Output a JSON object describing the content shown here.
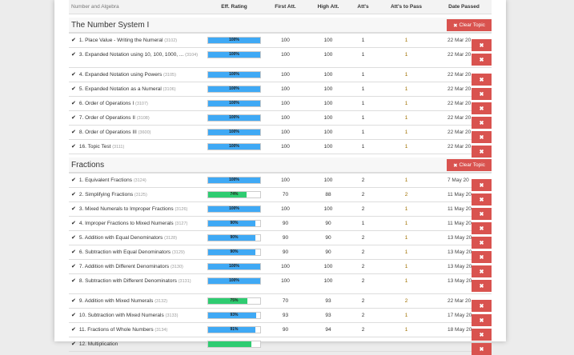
{
  "header": {
    "name": "Number and Algebra",
    "eff": "Eff. Rating",
    "first": "First Att.",
    "high": "High Att.",
    "atts": "Att's",
    "pass": "Att's to Pass",
    "date": "Date Passed"
  },
  "clear_label": "Clear Topic",
  "delete_icon": "✖",
  "colors": {
    "blue": "#3fa9f5",
    "green": "#2ecc71",
    "danger": "#d9534f"
  },
  "sections": [
    {
      "title": "The Number System I",
      "rows": [
        {
          "name": "1. Place Value - Writing the Numeral",
          "code": "(3102)",
          "eff": 100,
          "eff_label": "100%",
          "color": "blue",
          "first": "100",
          "high": "100",
          "atts": "1",
          "pass": "1",
          "date": "22 Mar 20"
        },
        {
          "name": "3. Expanded Notation using 10, 100, 1000, ...",
          "code": "(3104)",
          "eff": 100,
          "eff_label": "100%",
          "color": "blue",
          "first": "100",
          "high": "100",
          "atts": "1",
          "pass": "1",
          "date": "22 Mar 20",
          "wrap": true
        },
        {
          "name": "4. Expanded Notation using Powers",
          "code": "(3105)",
          "eff": 100,
          "eff_label": "100%",
          "color": "blue",
          "first": "100",
          "high": "100",
          "atts": "1",
          "pass": "1",
          "date": "22 Mar 20"
        },
        {
          "name": "5. Expanded Notation as a Numeral",
          "code": "(3106)",
          "eff": 100,
          "eff_label": "100%",
          "color": "blue",
          "first": "100",
          "high": "100",
          "atts": "1",
          "pass": "1",
          "date": "22 Mar 20"
        },
        {
          "name": "6. Order of Operations I",
          "code": "(3107)",
          "eff": 100,
          "eff_label": "100%",
          "color": "blue",
          "first": "100",
          "high": "100",
          "atts": "1",
          "pass": "1",
          "date": "22 Mar 20"
        },
        {
          "name": "7. Order of Operations II",
          "code": "(3108)",
          "eff": 100,
          "eff_label": "100%",
          "color": "blue",
          "first": "100",
          "high": "100",
          "atts": "1",
          "pass": "1",
          "date": "22 Mar 20"
        },
        {
          "name": "8. Order of Operations III",
          "code": "(3600)",
          "eff": 100,
          "eff_label": "100%",
          "color": "blue",
          "first": "100",
          "high": "100",
          "atts": "1",
          "pass": "1",
          "date": "22 Mar 20"
        },
        {
          "name": "16. Topic Test",
          "code": "(3111)",
          "eff": 100,
          "eff_label": "100%",
          "color": "blue",
          "first": "100",
          "high": "100",
          "atts": "1",
          "pass": "1",
          "date": "22 Mar 20"
        }
      ]
    },
    {
      "title": "Fractions",
      "rows": [
        {
          "name": "1. Equivalent Fractions",
          "code": "(3124)",
          "eff": 100,
          "eff_label": "100%",
          "color": "blue",
          "first": "100",
          "high": "100",
          "atts": "2",
          "pass": "1",
          "date": "7 May 20"
        },
        {
          "name": "2. Simplifying Fractions",
          "code": "(3125)",
          "eff": 74,
          "eff_label": "74%",
          "color": "green",
          "first": "70",
          "high": "88",
          "atts": "2",
          "pass": "2",
          "date": "11 May 20"
        },
        {
          "name": "3. Mixed Numerals to Improper Fractions",
          "code": "(3126)",
          "eff": 100,
          "eff_label": "100%",
          "color": "blue",
          "first": "100",
          "high": "100",
          "atts": "2",
          "pass": "1",
          "date": "11 May 20"
        },
        {
          "name": "4. Improper Fractions to Mixed Numerals",
          "code": "(3127)",
          "eff": 90,
          "eff_label": "90%",
          "color": "blue",
          "first": "90",
          "high": "90",
          "atts": "1",
          "pass": "1",
          "date": "11 May 20"
        },
        {
          "name": "5. Addition with Equal Denominators",
          "code": "(3128)",
          "eff": 90,
          "eff_label": "90%",
          "color": "blue",
          "first": "90",
          "high": "90",
          "atts": "2",
          "pass": "1",
          "date": "13 May 20"
        },
        {
          "name": "6. Subtraction with Equal Denominators",
          "code": "(3129)",
          "eff": 90,
          "eff_label": "90%",
          "color": "blue",
          "first": "90",
          "high": "90",
          "atts": "2",
          "pass": "1",
          "date": "13 May 20"
        },
        {
          "name": "7. Addition with Different Denominators",
          "code": "(3130)",
          "eff": 100,
          "eff_label": "100%",
          "color": "blue",
          "first": "100",
          "high": "100",
          "atts": "2",
          "pass": "1",
          "date": "13 May 20"
        },
        {
          "name": "8. Subtraction with Different Denominators",
          "code": "(3131)",
          "eff": 100,
          "eff_label": "100%",
          "color": "blue",
          "first": "100",
          "high": "100",
          "atts": "2",
          "pass": "1",
          "date": "13 May 20",
          "wrap": true
        },
        {
          "name": "9. Addition with Mixed Numerals",
          "code": "(3132)",
          "eff": 75,
          "eff_label": "75%",
          "color": "green",
          "first": "70",
          "high": "93",
          "atts": "2",
          "pass": "2",
          "date": "22 Mar 20"
        },
        {
          "name": "10. Subtraction with Mixed Numerals",
          "code": "(3133)",
          "eff": 93,
          "eff_label": "93%",
          "color": "blue",
          "first": "93",
          "high": "93",
          "atts": "2",
          "pass": "1",
          "date": "17 May 20"
        },
        {
          "name": "11. Fractions of Whole Numbers",
          "code": "(3134)",
          "eff": 91,
          "eff_label": "91%",
          "color": "blue",
          "first": "90",
          "high": "94",
          "atts": "2",
          "pass": "1",
          "date": "18 May 20"
        },
        {
          "name": "12. Multiplication",
          "code": "",
          "eff": 83,
          "eff_label": "",
          "color": "green",
          "first": "",
          "high": "",
          "atts": "",
          "pass": "",
          "date": ""
        }
      ]
    }
  ]
}
